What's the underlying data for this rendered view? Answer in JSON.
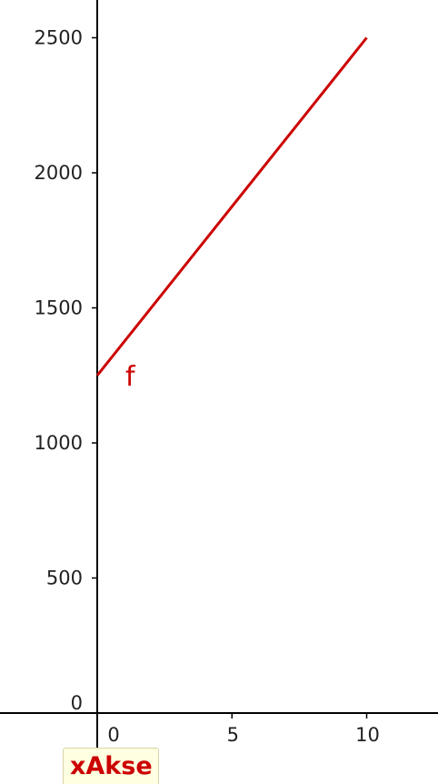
{
  "chart_data": {
    "type": "line",
    "title": "",
    "xlabel": "",
    "ylabel": "",
    "xlim": [
      -3.6,
      12.7
    ],
    "ylim": [
      -50,
      2640
    ],
    "x_ticks": [
      0,
      5,
      10
    ],
    "x_tick_labels": [
      "0",
      "5",
      "10"
    ],
    "y_ticks": [
      0,
      500,
      1000,
      1500,
      2000,
      2500
    ],
    "y_tick_labels": [
      "0",
      "500",
      "1000",
      "1500",
      "2000",
      "2500"
    ],
    "grid": false,
    "series": [
      {
        "name": "f",
        "label": "f",
        "color": "#cc0000",
        "x": [
          0,
          10
        ],
        "y": [
          1250,
          2500
        ]
      }
    ]
  },
  "tooltip": {
    "text": "xAkse",
    "color": "#cc0000"
  },
  "colors": {
    "axis": "#000000",
    "function": "#cc0000",
    "background": "#ffffff"
  }
}
